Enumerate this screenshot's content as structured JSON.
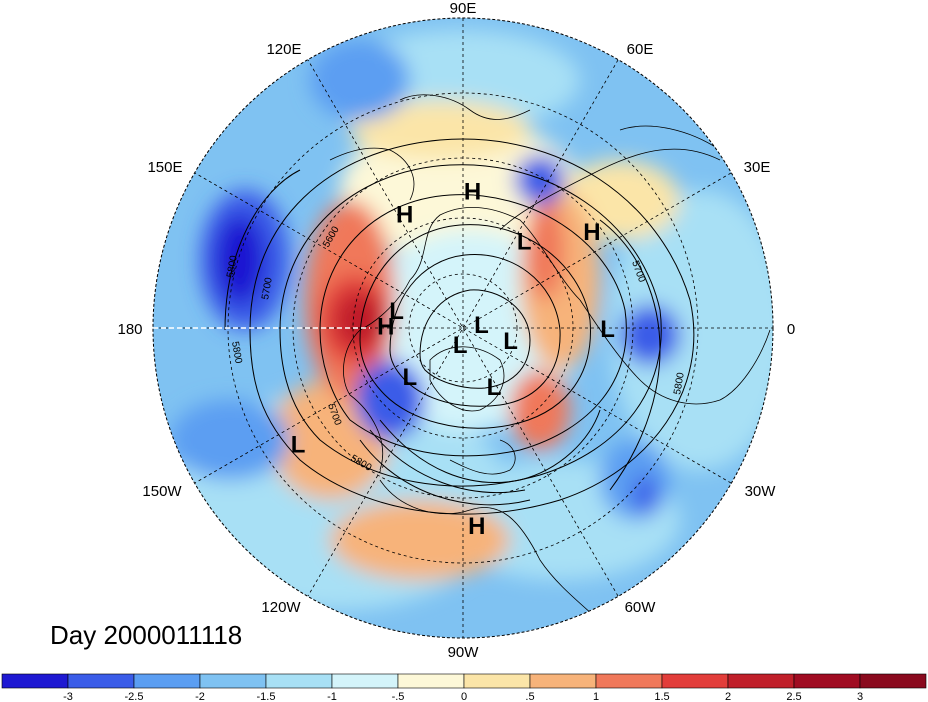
{
  "map": {
    "title": "Day 2000011118",
    "projection": "north-polar-stereographic",
    "longitude_labels": [
      {
        "text": "90E",
        "lon": 90
      },
      {
        "text": "60E",
        "lon": 60
      },
      {
        "text": "30E",
        "lon": 30
      },
      {
        "text": "0",
        "lon": 0
      },
      {
        "text": "30W",
        "lon": -30
      },
      {
        "text": "60W",
        "lon": -60
      },
      {
        "text": "90W",
        "lon": -90
      },
      {
        "text": "120W",
        "lon": -120
      },
      {
        "text": "150W",
        "lon": -150
      },
      {
        "text": "180",
        "lon": 180
      },
      {
        "text": "150E",
        "lon": 150
      },
      {
        "text": "120E",
        "lon": 120
      }
    ],
    "pressure_centers": [
      {
        "type": "H",
        "lon": 86,
        "lat": 42
      },
      {
        "type": "H",
        "lon": 117,
        "lat": 45
      },
      {
        "type": "H",
        "lon": 37,
        "lat": 35
      },
      {
        "type": "H",
        "lon": 178,
        "lat": 62
      },
      {
        "type": "H",
        "lon": -86,
        "lat": 25
      },
      {
        "type": "L",
        "lon": 55,
        "lat": 52
      },
      {
        "type": "L",
        "lon": 165,
        "lat": 65
      },
      {
        "type": "L",
        "lon": 0,
        "lat": 40
      },
      {
        "type": "L",
        "lon": 12,
        "lat": 83
      },
      {
        "type": "L",
        "lon": -14,
        "lat": 72
      },
      {
        "type": "L",
        "lon": -100,
        "lat": 84
      },
      {
        "type": "L",
        "lon": -138,
        "lat": 64
      },
      {
        "type": "L",
        "lon": -62,
        "lat": 66
      },
      {
        "type": "L",
        "lon": -145,
        "lat": 24
      }
    ],
    "contour_labels": [
      "5600",
      "5700",
      "5800",
      "5800",
      "5700",
      "5800",
      "5700",
      "5800"
    ],
    "colors": {
      "land_outline": "#000000",
      "contour": "#000000"
    }
  },
  "colorbar": {
    "tick_labels": [
      "-3",
      "-2.5",
      "-2",
      "-1.5",
      "-1",
      "-.5",
      "0",
      ".5",
      "1",
      "1.5",
      "2",
      "2.5",
      "3"
    ],
    "colors": [
      "#1e19d2",
      "#3a5ce8",
      "#5b9ef2",
      "#7fc2f2",
      "#a8e0f5",
      "#d4f4fa",
      "#fdf8d8",
      "#fbe5a8",
      "#f7b37a",
      "#f0785a",
      "#e23d3a",
      "#c01f2a",
      "#a00c22",
      "#8a0a1e"
    ]
  }
}
